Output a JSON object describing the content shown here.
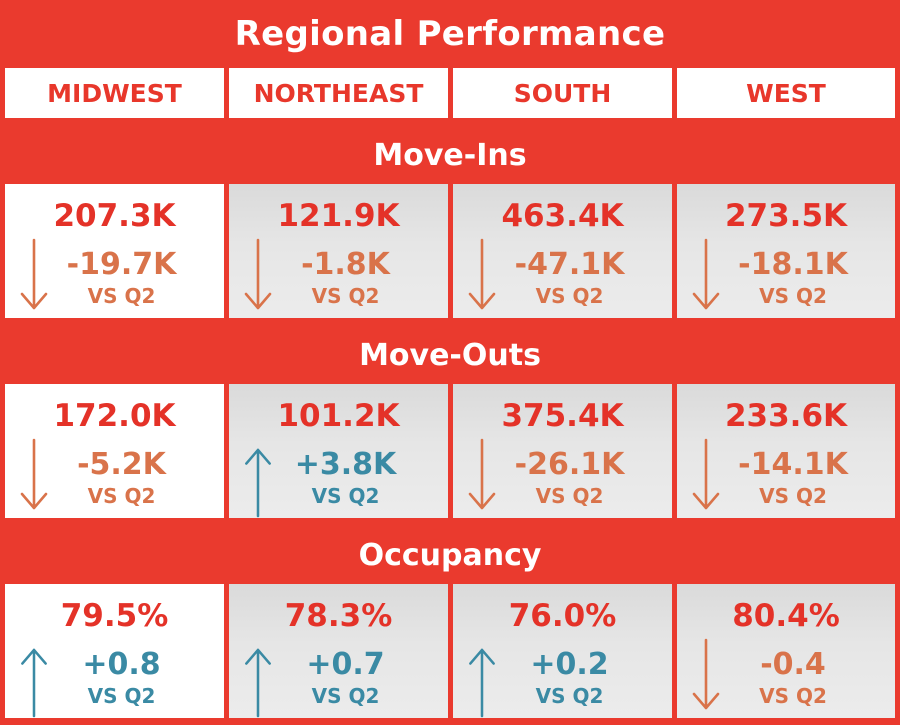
{
  "title": "Regional Performance",
  "regions": [
    "MIDWEST",
    "NORTHEAST",
    "SOUTH",
    "WEST"
  ],
  "colors": {
    "background": "#ea3a2e",
    "value": "#e43228",
    "down": "#d9734a",
    "up": "#3a8aa4"
  },
  "chart_data": {
    "type": "table",
    "title": "Regional Performance",
    "columns": [
      "MIDWEST",
      "NORTHEAST",
      "SOUTH",
      "WEST"
    ],
    "sections": [
      {
        "name": "Move-Ins",
        "cells": [
          {
            "value": "207.3K",
            "delta": "-19.7K",
            "compare": "VS Q2",
            "direction": "down"
          },
          {
            "value": "121.9K",
            "delta": "-1.8K",
            "compare": "VS Q2",
            "direction": "down"
          },
          {
            "value": "463.4K",
            "delta": "-47.1K",
            "compare": "VS Q2",
            "direction": "down"
          },
          {
            "value": "273.5K",
            "delta": "-18.1K",
            "compare": "VS Q2",
            "direction": "down"
          }
        ]
      },
      {
        "name": "Move-Outs",
        "cells": [
          {
            "value": "172.0K",
            "delta": "-5.2K",
            "compare": "VS Q2",
            "direction": "down"
          },
          {
            "value": "101.2K",
            "delta": "+3.8K",
            "compare": "VS Q2",
            "direction": "up"
          },
          {
            "value": "375.4K",
            "delta": "-26.1K",
            "compare": "VS Q2",
            "direction": "down"
          },
          {
            "value": "233.6K",
            "delta": "-14.1K",
            "compare": "VS Q2",
            "direction": "down"
          }
        ]
      },
      {
        "name": "Occupancy",
        "cells": [
          {
            "value": "79.5%",
            "delta": "+0.8",
            "compare": "VS Q2",
            "direction": "up"
          },
          {
            "value": "78.3%",
            "delta": "+0.7",
            "compare": "VS Q2",
            "direction": "up"
          },
          {
            "value": "76.0%",
            "delta": "+0.2",
            "compare": "VS Q2",
            "direction": "up"
          },
          {
            "value": "80.4%",
            "delta": "-0.4",
            "compare": "VS Q2",
            "direction": "down"
          }
        ]
      }
    ]
  }
}
